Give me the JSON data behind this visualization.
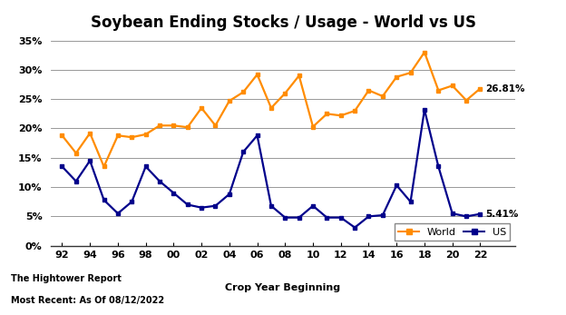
{
  "title": "Soybean Ending Stocks / Usage - World vs US",
  "xlabel": "Crop Year Beginning",
  "world": [
    18.8,
    15.8,
    19.2,
    13.5,
    18.8,
    18.5,
    19.0,
    20.5,
    20.5,
    20.2,
    23.5,
    20.5,
    24.7,
    26.2,
    29.2,
    23.5,
    26.0,
    29.0,
    20.3,
    22.5,
    22.2,
    23.0,
    26.5,
    25.5,
    28.8,
    29.5,
    33.0,
    26.5,
    27.3,
    24.8,
    26.81
  ],
  "us": [
    13.5,
    11.0,
    14.5,
    7.8,
    5.5,
    7.5,
    13.5,
    11.0,
    9.0,
    7.0,
    6.5,
    6.8,
    8.8,
    16.0,
    18.8,
    6.8,
    4.8,
    4.8,
    6.8,
    4.8,
    4.8,
    3.1,
    5.0,
    5.2,
    10.3,
    7.5,
    23.2,
    13.5,
    5.5,
    5.0,
    5.41
  ],
  "world_color": "#FF8C00",
  "us_color": "#00008B",
  "bg_color": "#FFFFFF",
  "grid_color": "#888888",
  "ylim": [
    0,
    36
  ],
  "yticks": [
    0,
    5,
    10,
    15,
    20,
    25,
    30,
    35
  ],
  "ytick_labels": [
    "0%",
    "5%",
    "10%",
    "15%",
    "20%",
    "25%",
    "30%",
    "35%"
  ],
  "xtick_positions": [
    0,
    2,
    4,
    6,
    8,
    10,
    12,
    14,
    16,
    18,
    20,
    22,
    24,
    26,
    28,
    30
  ],
  "xtick_labels": [
    "92",
    "94",
    "96",
    "98",
    "00",
    "02",
    "04",
    "06",
    "08",
    "10",
    "12",
    "14",
    "16",
    "18",
    "20",
    "22"
  ],
  "footer_left_line1": "The Hightower Report",
  "footer_left_line2": "Most Recent: As Of 08/12/2022",
  "world_label": "World",
  "us_label": "US",
  "annotation_world": "26.81%",
  "annotation_us": "5.41%",
  "title_fontsize": 12,
  "tick_fontsize": 8,
  "footer_fontsize": 7,
  "legend_fontsize": 8
}
